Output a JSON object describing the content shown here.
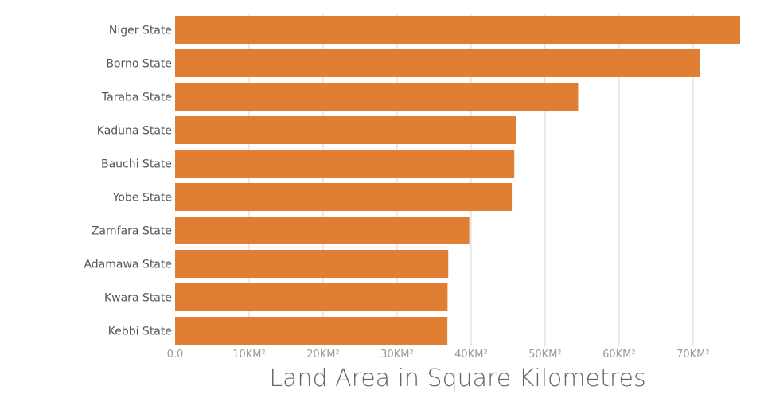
{
  "chart_data": {
    "type": "bar",
    "orientation": "horizontal",
    "categories": [
      "Niger State",
      "Borno State",
      "Taraba State",
      "Kaduna State",
      "Bauchi State",
      "Yobe State",
      "Zamfara State",
      "Adamawa State",
      "Kwara State",
      "Kebbi State"
    ],
    "values": [
      76363,
      70898,
      54473,
      46053,
      45837,
      45502,
      39762,
      36917,
      36825,
      36800
    ],
    "xlabel": "Land Area in Square Kilometres",
    "ylabel": "",
    "xlim": [
      0,
      76363
    ],
    "x_ticks": [
      0,
      10000,
      20000,
      30000,
      40000,
      50000,
      60000,
      70000
    ],
    "x_tick_labels": [
      "0.0",
      "10KM²",
      "20KM²",
      "30KM²",
      "40KM²",
      "50KM²",
      "60KM²",
      "70KM²"
    ],
    "bar_color": "#e07f33",
    "grid": true,
    "legend": false
  }
}
